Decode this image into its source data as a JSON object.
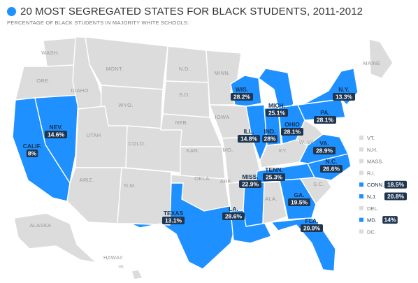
{
  "title": "20 MOST SEGREGATED STATES FOR BLACK STUDENTS, 2011-2012",
  "subtitle": "PERCENTAGE OF BLACK STUDENTS IN MAJORITY WHITE SCHOOLS:",
  "colors": {
    "highlight": "#1e90ff",
    "base": "#dcdcdc",
    "badge": "#1f3550",
    "border": "#ffffff"
  },
  "unlabeled_states": [
    {
      "label": "WASH."
    },
    {
      "label": "ORE."
    },
    {
      "label": "IDAHO"
    },
    {
      "label": "MONT."
    },
    {
      "label": "WYO."
    },
    {
      "label": "UTAH"
    },
    {
      "label": "COLO."
    },
    {
      "label": "ARIZ."
    },
    {
      "label": "N.M."
    },
    {
      "label": "N.D."
    },
    {
      "label": "S.D."
    },
    {
      "label": "NEB."
    },
    {
      "label": "KAN."
    },
    {
      "label": "OKLA."
    },
    {
      "label": "MINN."
    },
    {
      "label": "IOWA"
    },
    {
      "label": "MO."
    },
    {
      "label": "ARK."
    },
    {
      "label": "KY."
    },
    {
      "label": "ALA."
    },
    {
      "label": "S.C."
    },
    {
      "label": "MAINE"
    },
    {
      "label": "ALASKA"
    },
    {
      "label": "HAWAII"
    },
    {
      "label": "W. VA."
    }
  ],
  "highlighted_states": [
    {
      "label": "CALIF.",
      "value": "8%"
    },
    {
      "label": "NEV.",
      "value": "14.6%"
    },
    {
      "label": "TEXAS",
      "value": "13.1%"
    },
    {
      "label": "WIS.",
      "value": "28.2%"
    },
    {
      "label": "ILL.",
      "value": "14.8%"
    },
    {
      "label": "MICH.",
      "value": "25.1%"
    },
    {
      "label": "IND.",
      "value": "28%"
    },
    {
      "label": "OHIO",
      "value": "28.1%"
    },
    {
      "label": "PA.",
      "value": "28.1%"
    },
    {
      "label": "N.Y.",
      "value": "13.3%"
    },
    {
      "label": "VA.",
      "value": "28.9%"
    },
    {
      "label": "N.C.",
      "value": "26.6%"
    },
    {
      "label": "TENN.",
      "value": "25.3%"
    },
    {
      "label": "MISS.",
      "value": "22.9%"
    },
    {
      "label": "LA.",
      "value": "28.6%"
    },
    {
      "label": "GA.",
      "value": "19.5%"
    },
    {
      "label": "FLA.",
      "value": "20.9%"
    }
  ],
  "legend": [
    {
      "label": "VT.",
      "highlighted": false,
      "value": ""
    },
    {
      "label": "N.H.",
      "highlighted": false,
      "value": ""
    },
    {
      "label": "MASS.",
      "highlighted": false,
      "value": ""
    },
    {
      "label": "R.I.",
      "highlighted": false,
      "value": ""
    },
    {
      "label": "CONN.",
      "highlighted": true,
      "value": "18.5%"
    },
    {
      "label": "N.J.",
      "highlighted": true,
      "value": "20.8%"
    },
    {
      "label": "DEL.",
      "highlighted": false,
      "value": ""
    },
    {
      "label": "MD.",
      "highlighted": true,
      "value": "14%"
    },
    {
      "label": "DC.",
      "highlighted": false,
      "value": ""
    }
  ]
}
